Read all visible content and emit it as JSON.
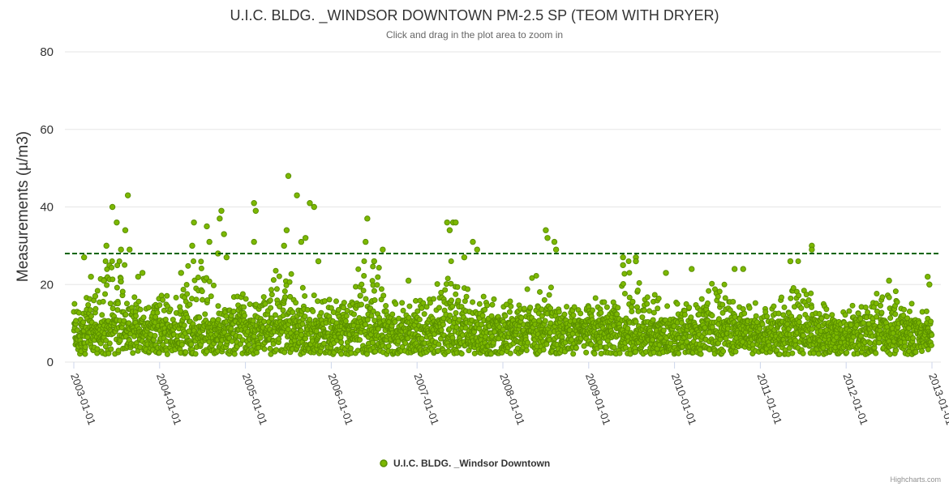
{
  "chart_data": {
    "type": "scatter",
    "title": "U.I.C. BLDG. _WINDSOR DOWNTOWN PM-2.5 SP (TEOM WITH DRYER)",
    "subtitle": "Click and drag in the plot area to zoom in",
    "ylabel": "Measurements (µ/m3)",
    "xlabel": "",
    "ylim": [
      0,
      80
    ],
    "yticks": [
      "0",
      "20",
      "40",
      "60",
      "80"
    ],
    "xlim": [
      "2003-01-01",
      "2013-01-01"
    ],
    "xticks": [
      "2003-01-01",
      "2004-01-01",
      "2005-01-01",
      "2006-01-01",
      "2007-01-01",
      "2008-01-01",
      "2009-01-01",
      "2010-01-01",
      "2011-01-01",
      "2012-01-01",
      "2013-01-01"
    ],
    "grid": true,
    "reference_line": {
      "value": 28,
      "style": "dashed",
      "color": "#006400"
    },
    "series": [
      {
        "name": "U.I.C. BLDG. _Windsor Downtown",
        "color": "#7cb800",
        "note": "Dense daily measurements; values mostly 1-15 with seasonal peaks. Notable highlighted extremes listed below (year fraction, value).",
        "peaks": [
          [
            2003.12,
            27
          ],
          [
            2003.2,
            22
          ],
          [
            2003.25,
            17
          ],
          [
            2003.35,
            21
          ],
          [
            2003.38,
            30
          ],
          [
            2003.45,
            40
          ],
          [
            2003.5,
            36
          ],
          [
            2003.55,
            29
          ],
          [
            2003.6,
            34
          ],
          [
            2003.63,
            43
          ],
          [
            2003.65,
            29
          ],
          [
            2003.75,
            22
          ],
          [
            2003.8,
            23
          ],
          [
            2004.25,
            23
          ],
          [
            2004.38,
            30
          ],
          [
            2004.4,
            36
          ],
          [
            2004.55,
            35
          ],
          [
            2004.58,
            31
          ],
          [
            2004.68,
            28
          ],
          [
            2004.7,
            37
          ],
          [
            2004.72,
            39
          ],
          [
            2004.75,
            33
          ],
          [
            2004.78,
            27
          ],
          [
            2005.1,
            41
          ],
          [
            2005.12,
            39
          ],
          [
            2005.1,
            31
          ],
          [
            2005.45,
            30
          ],
          [
            2005.48,
            34
          ],
          [
            2005.5,
            48
          ],
          [
            2005.6,
            43
          ],
          [
            2005.65,
            31
          ],
          [
            2005.7,
            32
          ],
          [
            2005.75,
            41
          ],
          [
            2005.8,
            40
          ],
          [
            2005.85,
            26
          ],
          [
            2006.4,
            31
          ],
          [
            2006.42,
            37
          ],
          [
            2006.5,
            26
          ],
          [
            2006.6,
            29
          ],
          [
            2006.9,
            21
          ],
          [
            2007.35,
            36
          ],
          [
            2007.38,
            34
          ],
          [
            2007.42,
            36
          ],
          [
            2007.45,
            36
          ],
          [
            2007.55,
            27
          ],
          [
            2007.65,
            31
          ],
          [
            2007.7,
            29
          ],
          [
            2008.5,
            34
          ],
          [
            2008.52,
            32
          ],
          [
            2008.6,
            31
          ],
          [
            2008.62,
            29
          ],
          [
            2009.4,
            25
          ],
          [
            2009.4,
            27
          ],
          [
            2009.55,
            27
          ],
          [
            2009.55,
            26
          ],
          [
            2009.9,
            23
          ],
          [
            2010.2,
            24
          ],
          [
            2010.7,
            24
          ],
          [
            2010.8,
            24
          ],
          [
            2011.35,
            26
          ],
          [
            2011.6,
            30
          ],
          [
            2011.6,
            29
          ],
          [
            2012.5,
            21
          ],
          [
            2012.95,
            22
          ],
          [
            2012.97,
            20
          ]
        ]
      }
    ],
    "legend": {
      "position": "bottom-center",
      "label": "U.I.C. BLDG. _Windsor Downtown"
    },
    "credits": "Highcharts.com"
  }
}
